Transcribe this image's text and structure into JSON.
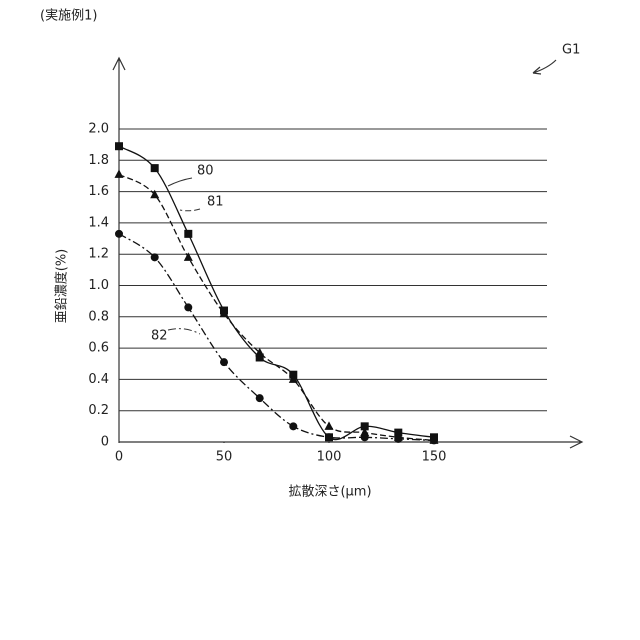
{
  "chart_data": {
    "type": "line",
    "title": "(実施例1)",
    "figure_label": "G1",
    "x_label": "拡散深さ(μm)",
    "y_label": "亜鉛濃度(%)",
    "xlim": [
      0,
      200
    ],
    "xticks": [
      0,
      50,
      100,
      150
    ],
    "ylim": [
      0,
      2.0
    ],
    "yticks": [
      0,
      0.2,
      0.4,
      0.6,
      0.8,
      {
        "value": 1,
        "label": "1.0"
      },
      1.2,
      1.4,
      1.6,
      1.8,
      {
        "value": 2,
        "label": "2.0"
      }
    ],
    "grid": true,
    "series": [
      {
        "name": "80",
        "color": "#111111",
        "marker": "square",
        "line_style": "solid",
        "x": [
          0,
          17,
          33,
          50,
          67,
          83,
          100,
          117,
          133,
          150
        ],
        "values": [
          1.89,
          1.75,
          1.33,
          0.84,
          0.54,
          0.43,
          0.03,
          0.1,
          0.06,
          0.03
        ]
      },
      {
        "name": "81",
        "color": "#111111",
        "marker": "triangle",
        "line_style": "dashed",
        "x": [
          0,
          17,
          33,
          50,
          67,
          83,
          100,
          117,
          133,
          150
        ],
        "values": [
          1.71,
          1.58,
          1.18,
          0.82,
          0.57,
          0.4,
          0.1,
          0.06,
          0.03,
          0.01
        ]
      },
      {
        "name": "82",
        "color": "#111111",
        "marker": "circle",
        "line_style": "dashdot",
        "x": [
          0,
          17,
          33,
          50,
          67,
          83,
          100,
          117,
          133,
          150
        ],
        "values": [
          1.33,
          1.18,
          0.86,
          0.51,
          0.28,
          0.1,
          0.03,
          0.03,
          0.02,
          0.01
        ]
      }
    ]
  }
}
